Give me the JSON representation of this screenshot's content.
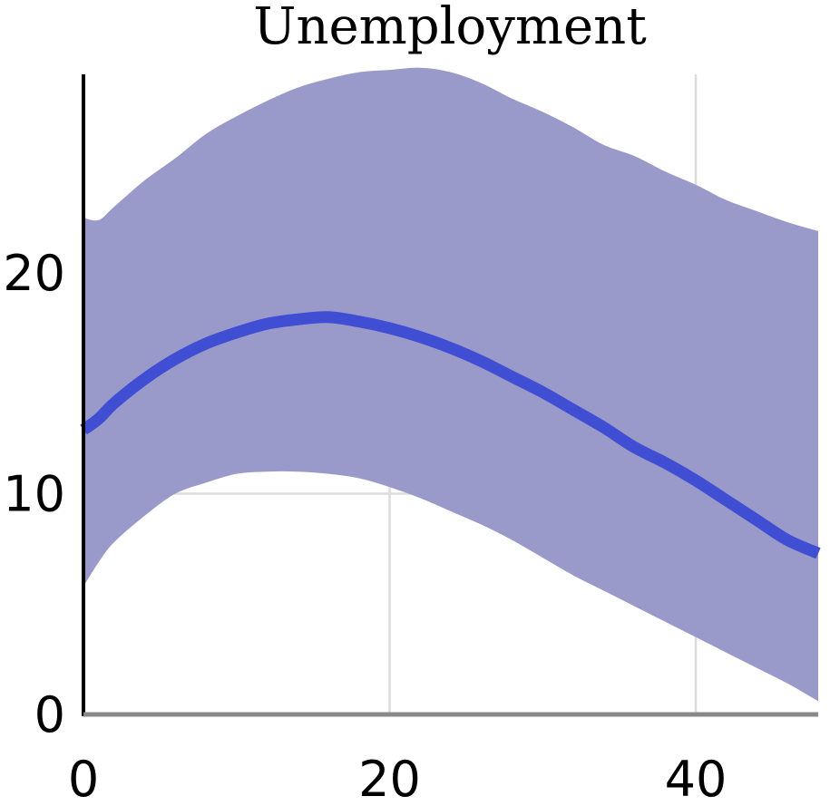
{
  "chart_data": {
    "type": "area",
    "title": "Unemployment",
    "xlabel": "",
    "ylabel": "",
    "xlim": [
      0,
      48
    ],
    "ylim": [
      0,
      29
    ],
    "x_ticks": [
      0,
      20,
      40
    ],
    "y_ticks": [
      0,
      10,
      20
    ],
    "grid": true,
    "x": [
      0,
      1,
      2,
      4,
      6,
      8,
      10,
      12,
      14,
      16,
      18,
      20,
      22,
      24,
      26,
      28,
      30,
      32,
      34,
      36,
      38,
      40,
      42,
      44,
      46,
      48
    ],
    "series": [
      {
        "role": "line",
        "values": [
          12.9,
          13.4,
          14.1,
          15.2,
          16.1,
          16.8,
          17.3,
          17.7,
          17.9,
          18.0,
          17.8,
          17.5,
          17.1,
          16.6,
          16.0,
          15.3,
          14.6,
          13.8,
          13.0,
          12.1,
          11.4,
          10.6,
          9.7,
          8.8,
          7.9,
          7.3
        ]
      },
      {
        "role": "band_upper",
        "values": [
          22.5,
          22.4,
          23.0,
          24.2,
          25.2,
          26.3,
          27.1,
          27.8,
          28.4,
          28.8,
          29.1,
          29.2,
          29.3,
          29.1,
          28.6,
          27.9,
          27.3,
          26.6,
          25.8,
          25.3,
          24.6,
          24.0,
          23.3,
          22.8,
          22.3,
          21.9
        ]
      },
      {
        "role": "band_lower",
        "values": [
          5.8,
          6.9,
          7.8,
          9.0,
          10.0,
          10.5,
          10.9,
          11.0,
          11.0,
          10.9,
          10.7,
          10.3,
          9.8,
          9.2,
          8.6,
          7.9,
          7.1,
          6.3,
          5.6,
          4.9,
          4.2,
          3.5,
          2.8,
          2.1,
          1.4,
          0.6
        ]
      }
    ],
    "colors": {
      "line": "#3f4ed2",
      "band": "#9a9aca",
      "grid": "#dcdcdc",
      "axis": "#000000"
    }
  }
}
